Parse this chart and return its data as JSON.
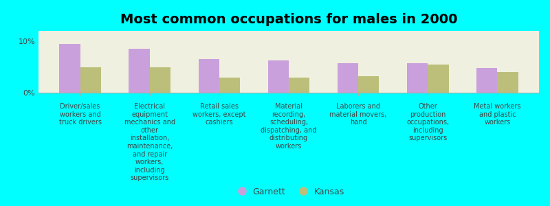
{
  "title": "Most common occupations for males in 2000",
  "background_color": "#00FFFF",
  "plot_bg_color": "#F0F0E0",
  "categories": [
    "Driver/sales\nworkers and\ntruck drivers",
    "Electrical\nequipment\nmechanics and\nother\ninstallation,\nmaintenance,\nand repair\nworkers,\nincluding\nsupervisors",
    "Retail sales\nworkers, except\ncashiers",
    "Material\nrecording,\nscheduling,\ndispatching, and\ndistributing\nworkers",
    "Laborers and\nmaterial movers,\nhand",
    "Other\nproduction\noccupations,\nincluding\nsupervisors",
    "Metal workers\nand plastic\nworkers"
  ],
  "garnett_values": [
    9.5,
    8.5,
    6.5,
    6.2,
    5.8,
    5.8,
    4.8
  ],
  "kansas_values": [
    5.0,
    5.0,
    3.0,
    3.0,
    3.2,
    5.5,
    4.0
  ],
  "garnett_color": "#C9A0DC",
  "kansas_color": "#BBBF7A",
  "ylim": [
    0,
    12
  ],
  "yticks": [
    0,
    10
  ],
  "ytick_labels": [
    "0%",
    "10%"
  ],
  "bar_width": 0.3,
  "title_fontsize": 14,
  "label_fontsize": 7,
  "legend_labels": [
    "Garnett",
    "Kansas"
  ],
  "legend_fontsize": 9
}
